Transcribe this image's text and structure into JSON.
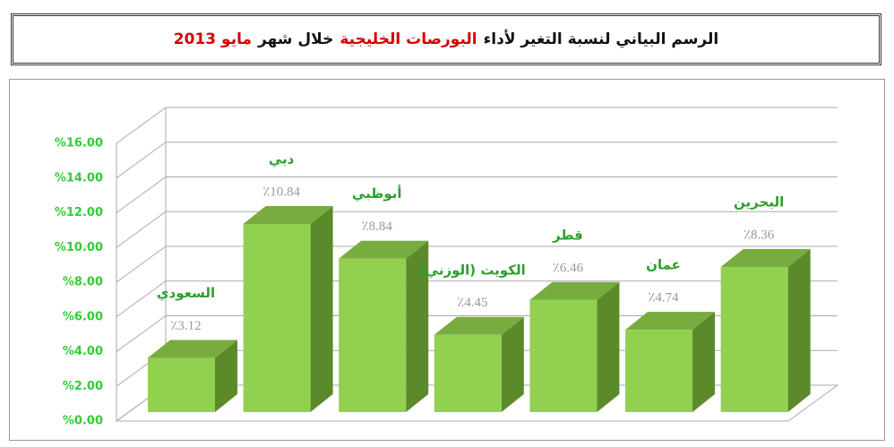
{
  "chart_data": {
    "type": "bar3d",
    "title": [
      "الرسم البياني لنسبة التغير لأداء",
      "البورصات الخليجية",
      "خلال شهر",
      "مايو 2013"
    ],
    "title_colors": [
      "#111111",
      "#d40000",
      "#111111",
      "#d40000"
    ],
    "categories": [
      "السعودي",
      "دبي",
      "أبوظبي",
      "الكويت (الوزني)",
      "قطر",
      "عمان",
      "البحرين"
    ],
    "values": [
      3.12,
      10.84,
      8.84,
      4.45,
      6.46,
      4.74,
      8.36
    ],
    "value_labels": [
      "٪3.12",
      "٪10.84",
      "٪8.84",
      "٪4.45",
      "٪6.46",
      "٪4.74",
      "٪8.36"
    ],
    "color": "#92d050",
    "ylim": [
      0,
      16
    ],
    "yticks": [
      {
        "value": 0,
        "label": "%0.00"
      },
      {
        "value": 2,
        "label": "%2.00"
      },
      {
        "value": 4,
        "label": "%4.00"
      },
      {
        "value": 6,
        "label": "%6.00"
      },
      {
        "value": 8,
        "label": "%8.00"
      },
      {
        "value": 10,
        "label": "%10.00"
      },
      {
        "value": 12,
        "label": "%12.00"
      },
      {
        "value": 14,
        "label": "%14.00"
      },
      {
        "value": 16,
        "label": "%16.00"
      }
    ],
    "grid": true
  }
}
